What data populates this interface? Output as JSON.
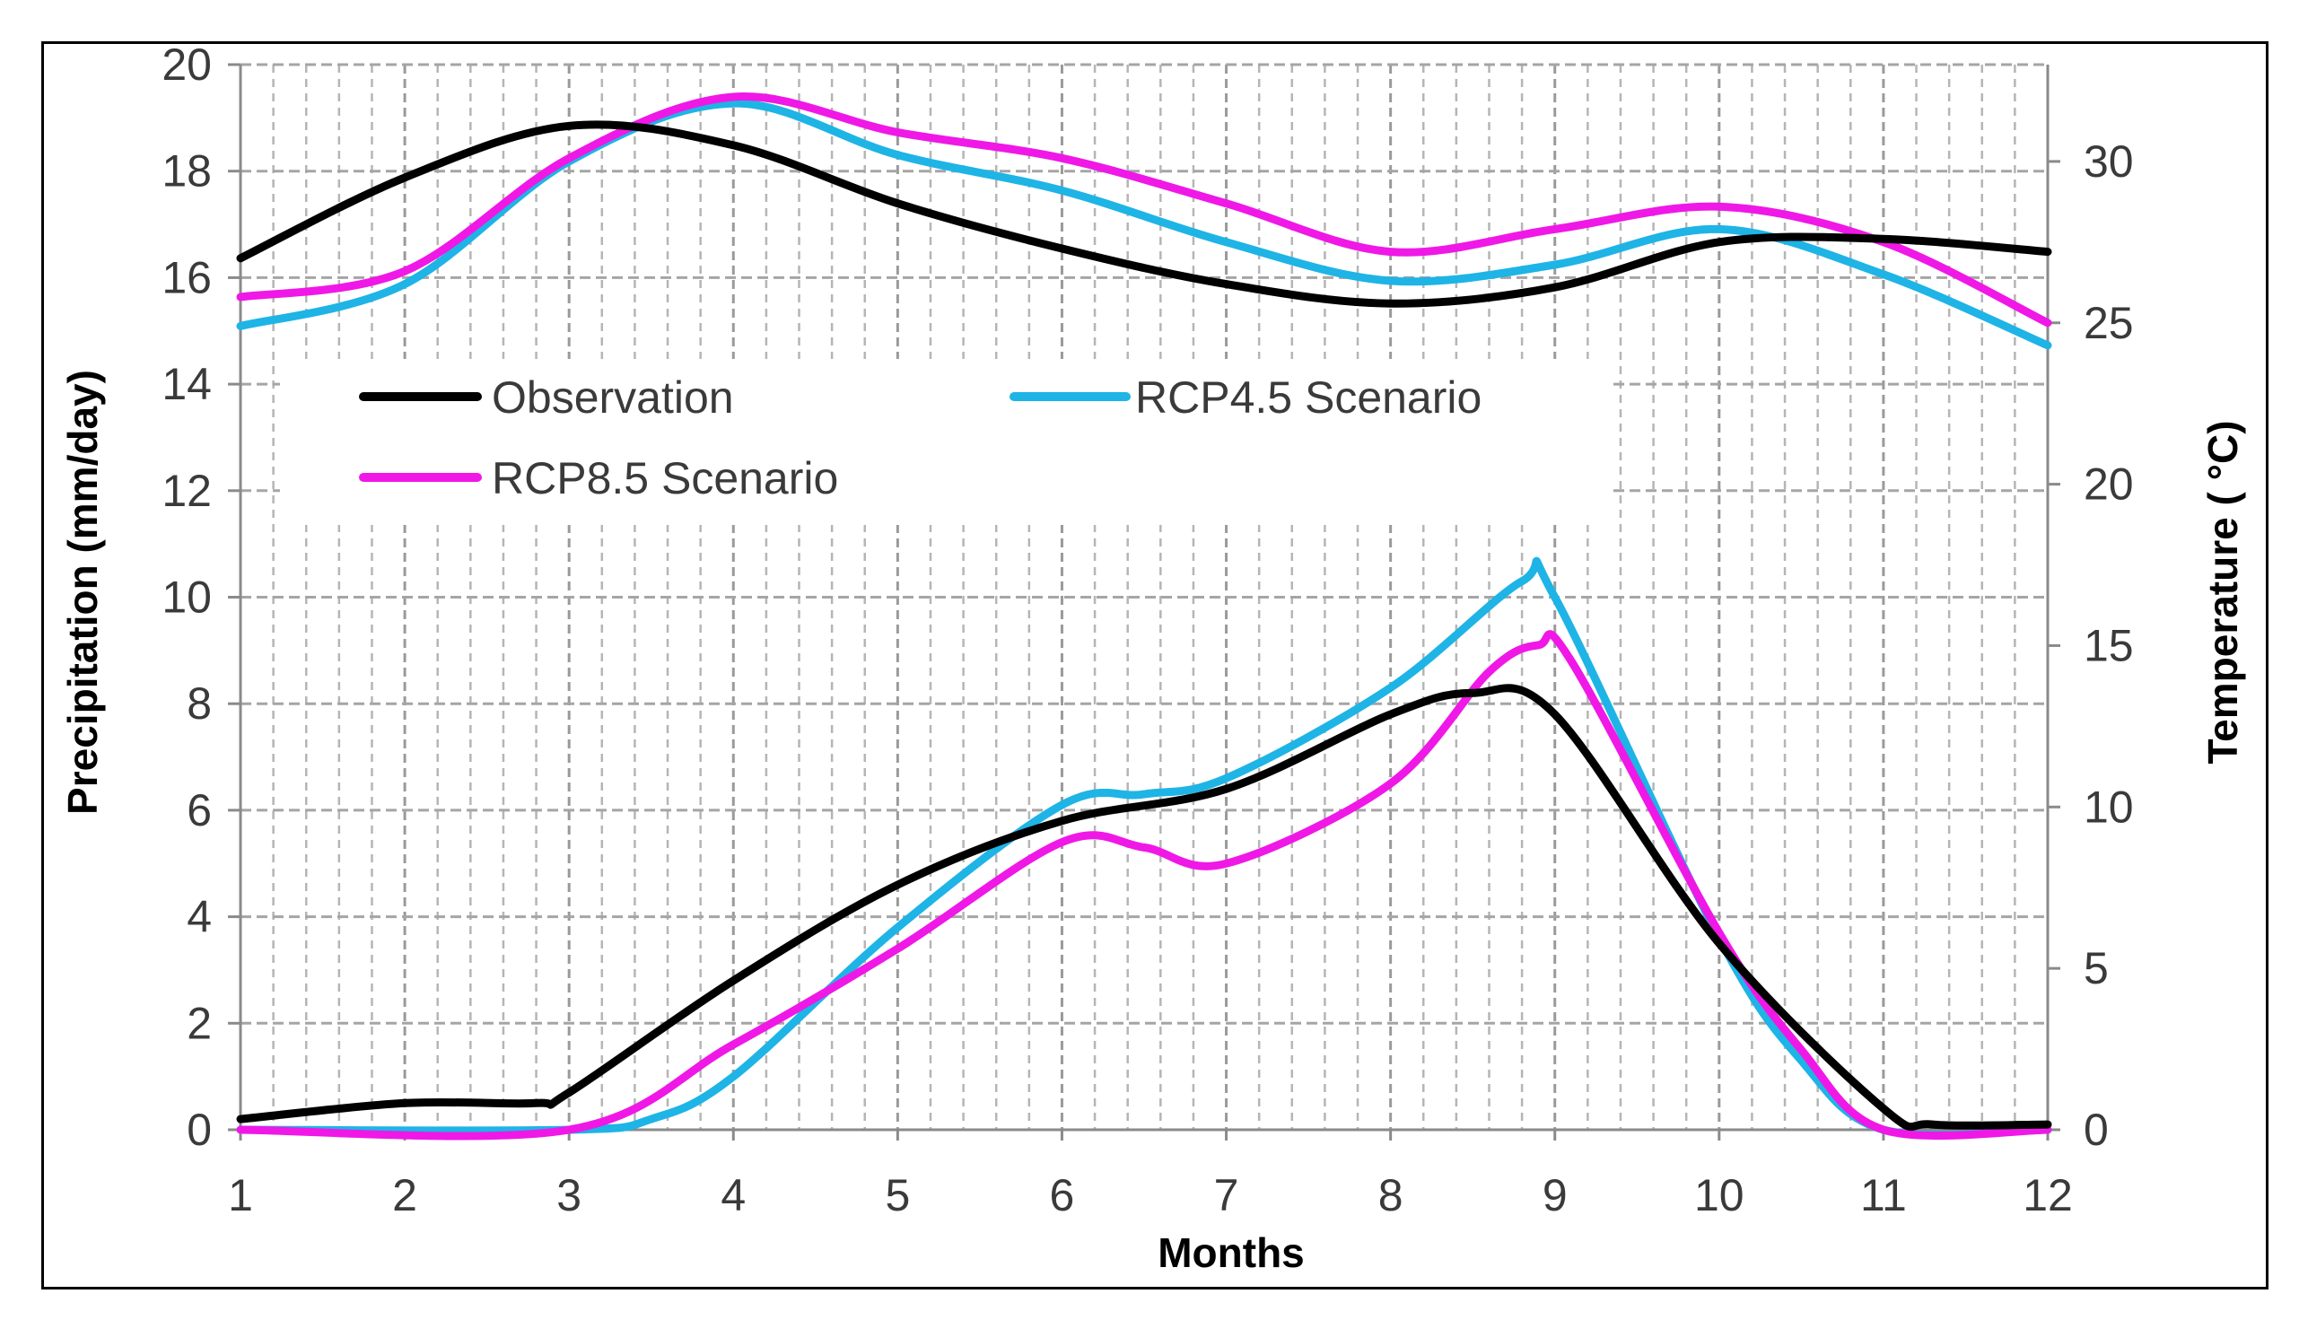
{
  "chart_data": {
    "type": "line",
    "title": "",
    "xlabel": "Months",
    "ylabel_left": "Precipitation (mm/day)",
    "ylabel_right": "Temperature ( °C)",
    "x": [
      1,
      2,
      3,
      4,
      5,
      6,
      7,
      8,
      9,
      10,
      11,
      12
    ],
    "x_tick_labels": [
      "1",
      "2",
      "3",
      "4",
      "5",
      "6",
      "7",
      "8",
      "9",
      "10",
      "11",
      "12"
    ],
    "xlim": [
      1,
      12
    ],
    "ylim_left": [
      0,
      20
    ],
    "ylim_right": [
      0,
      33
    ],
    "y_left_ticks": [
      0,
      2,
      4,
      6,
      8,
      10,
      12,
      14,
      16,
      18,
      20
    ],
    "y_right_ticks": [
      0,
      5,
      10,
      15,
      20,
      25,
      30
    ],
    "grid": true,
    "legend_position": "upper-left",
    "precipitation": [
      {
        "name": "Observation",
        "color": "#000000",
        "legend": true,
        "points": [
          [
            1,
            0.2
          ],
          [
            2,
            0.5
          ],
          [
            2.8,
            0.5
          ],
          [
            3,
            0.7
          ],
          [
            4,
            2.8
          ],
          [
            5,
            4.6
          ],
          [
            6,
            5.8
          ],
          [
            7,
            6.4
          ],
          [
            8,
            7.8
          ],
          [
            8.5,
            8.2
          ],
          [
            9,
            7.8
          ],
          [
            10,
            3.5
          ],
          [
            11,
            0.4
          ],
          [
            11.3,
            0.1
          ],
          [
            12,
            0.1
          ]
        ]
      },
      {
        "name": "RCP4.5 Scenario",
        "color": "#1EB4E6",
        "legend": true,
        "points": [
          [
            1,
            0.0
          ],
          [
            3,
            0.0
          ],
          [
            3.5,
            0.2
          ],
          [
            4,
            1.0
          ],
          [
            5,
            3.8
          ],
          [
            6,
            6.1
          ],
          [
            6.5,
            6.3
          ],
          [
            7,
            6.6
          ],
          [
            8,
            8.3
          ],
          [
            8.8,
            10.3
          ],
          [
            9,
            10.0
          ],
          [
            10,
            3.6
          ],
          [
            10.5,
            1.3
          ],
          [
            11,
            0.0
          ],
          [
            12,
            0.0
          ]
        ]
      },
      {
        "name": "RCP8.5 Scenario",
        "color": "#F018E6",
        "legend": true,
        "points": [
          [
            1,
            0.0
          ],
          [
            3,
            0.0
          ],
          [
            4,
            1.6
          ],
          [
            5,
            3.4
          ],
          [
            6,
            5.4
          ],
          [
            6.5,
            5.3
          ],
          [
            7,
            5.0
          ],
          [
            8,
            6.5
          ],
          [
            8.6,
            8.6
          ],
          [
            8.9,
            9.1
          ],
          [
            9.1,
            8.8
          ],
          [
            10,
            3.7
          ],
          [
            10.5,
            1.5
          ],
          [
            11,
            0.0
          ],
          [
            12,
            0.0
          ]
        ]
      }
    ],
    "temperature": [
      {
        "name": "Observation",
        "color": "#000000",
        "legend": false,
        "points": [
          [
            1,
            27.0
          ],
          [
            2,
            29.5
          ],
          [
            3,
            31.1
          ],
          [
            4,
            30.5
          ],
          [
            5,
            28.7
          ],
          [
            6,
            27.3
          ],
          [
            7,
            26.2
          ],
          [
            8,
            25.6
          ],
          [
            9,
            26.1
          ],
          [
            10,
            27.5
          ],
          [
            11,
            27.6
          ],
          [
            12,
            27.2
          ]
        ]
      },
      {
        "name": "RCP4.5 Scenario",
        "color": "#1EB4E6",
        "legend": false,
        "points": [
          [
            1,
            24.9
          ],
          [
            2,
            26.2
          ],
          [
            3,
            30.0
          ],
          [
            4,
            31.8
          ],
          [
            5,
            30.2
          ],
          [
            6,
            29.1
          ],
          [
            7,
            27.5
          ],
          [
            8,
            26.3
          ],
          [
            9,
            26.8
          ],
          [
            10,
            27.9
          ],
          [
            11,
            26.5
          ],
          [
            12,
            24.3
          ]
        ]
      },
      {
        "name": "RCP8.5 Scenario",
        "color": "#F018E6",
        "legend": false,
        "points": [
          [
            1,
            25.8
          ],
          [
            2,
            26.6
          ],
          [
            3,
            30.1
          ],
          [
            4,
            32.0
          ],
          [
            5,
            30.9
          ],
          [
            6,
            30.1
          ],
          [
            7,
            28.7
          ],
          [
            8,
            27.2
          ],
          [
            9,
            27.9
          ],
          [
            10,
            28.6
          ],
          [
            11,
            27.5
          ],
          [
            12,
            25.0
          ]
        ]
      }
    ]
  }
}
